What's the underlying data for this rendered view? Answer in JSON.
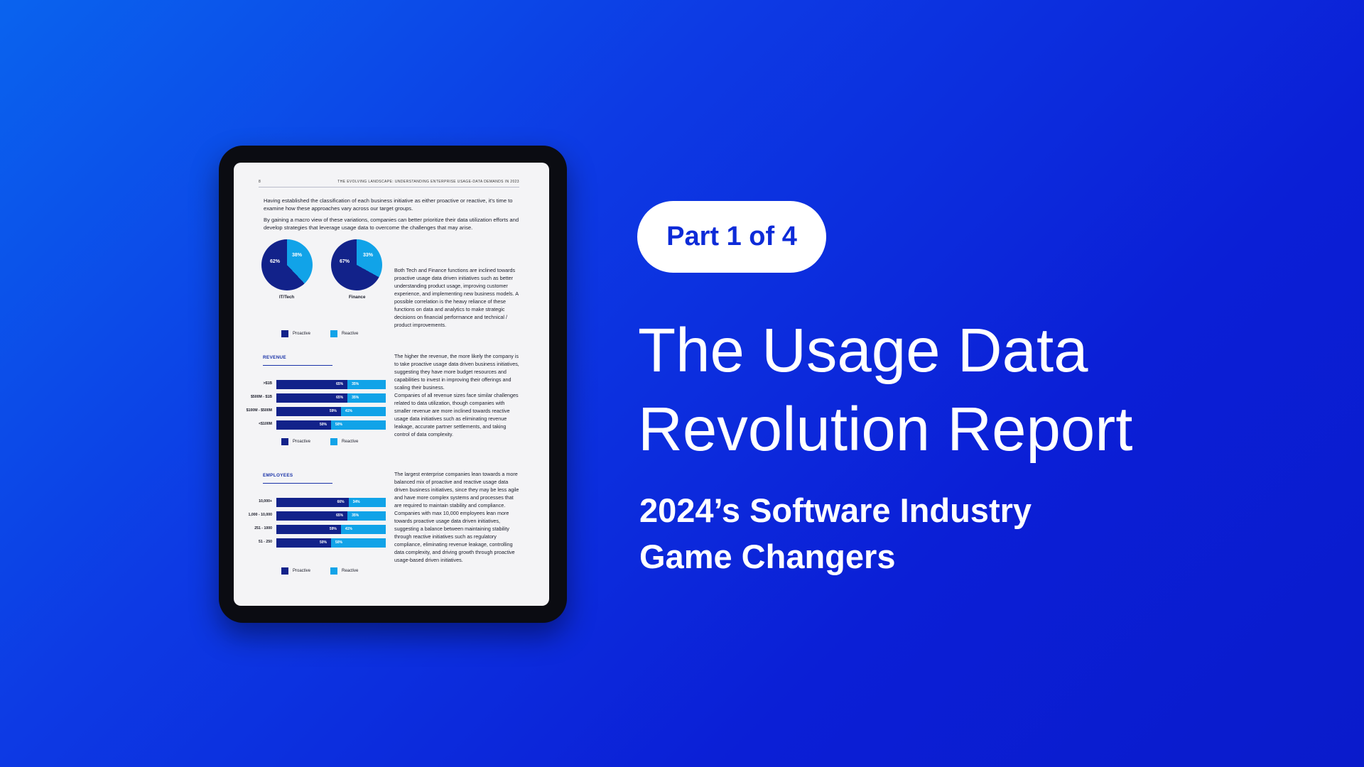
{
  "colors": {
    "background_start": "#0a63ee",
    "background_end": "#0a1bcb",
    "proactive": "#12228a",
    "reactive": "#11a3e8",
    "pill_text": "#0d2bd8"
  },
  "badge": {
    "label": "Part 1 of 4"
  },
  "title": {
    "line1": "The Usage Data",
    "line2": "Revolution Report"
  },
  "subtitle": {
    "line1": "2024’s Software Industry",
    "line2": "Game Changers"
  },
  "report_page": {
    "page_number": "8",
    "running_title": "THE EVOLVING LANDSCAPE: UNDERSTANDING ENTERPRISE USAGE-DATA DEMANDS IN 2023",
    "intro_1": "Having established the classification of each business initiative as either proactive or reactive, it's time to examine how these approaches vary across our target groups.",
    "intro_2": "By gaining a macro view of these variations, companies can better prioritize their data utilization efforts and develop strategies that leverage usage data to overcome the challenges that may arise.",
    "pies": [
      {
        "caption": "IT/Tech",
        "proactive": 62,
        "reactive": 38,
        "proactive_label": "62%",
        "reactive_label": "38%"
      },
      {
        "caption": "Finance",
        "proactive": 67,
        "reactive": 33,
        "proactive_label": "67%",
        "reactive_label": "33%"
      }
    ],
    "legend": {
      "proactive": "Proactive",
      "reactive": "Reactive"
    },
    "para_pies": "Both Tech and Finance functions are inclined towards proactive usage data driven initiatives such as better understanding product usage, improving customer experience, and implementing new business models. A possible correlation is the heavy reliance of these functions on data and analytics to make strategic decisions on financial performance and technical / product improvements.",
    "revenue": {
      "heading": "REVENUE",
      "rows": [
        {
          "label": ">$1B",
          "proactive": 65,
          "reactive": 35,
          "p_label": "65%",
          "r_label": "35%"
        },
        {
          "label": "$500M - $1B",
          "proactive": 65,
          "reactive": 35,
          "p_label": "65%",
          "r_label": "35%"
        },
        {
          "label": "$100M - $500M",
          "proactive": 59,
          "reactive": 41,
          "p_label": "59%",
          "r_label": "41%"
        },
        {
          "label": "<$100M",
          "proactive": 50,
          "reactive": 50,
          "p_label": "50%",
          "r_label": "50%"
        }
      ],
      "para": "The higher the revenue, the more likely the company is to take proactive usage data driven business initiatives, suggesting they have more budget resources and capabilities to invest in improving their offerings and scaling their business.\nCompanies of all revenue sizes face similar challenges related to data utilization, though companies with smaller revenue are more inclined towards reactive usage data initiatives such as eliminating revenue leakage, accurate partner settlements, and taking control of data complexity."
    },
    "employees": {
      "heading": "EMPLOYEES",
      "rows": [
        {
          "label": "10,000+",
          "proactive": 66,
          "reactive": 34,
          "p_label": "66%",
          "r_label": "34%"
        },
        {
          "label": "1,000 - 10,000",
          "proactive": 65,
          "reactive": 35,
          "p_label": "65%",
          "r_label": "35%"
        },
        {
          "label": "251 - 1000",
          "proactive": 59,
          "reactive": 41,
          "p_label": "59%",
          "r_label": "41%"
        },
        {
          "label": "51 - 250",
          "proactive": 50,
          "reactive": 50,
          "p_label": "50%",
          "r_label": "50%"
        }
      ],
      "para": "The largest enterprise companies lean towards a more balanced mix of proactive and reactive usage data driven business initiatives, since they may be less agile and have more complex systems and processes that are required to maintain stability and compliance.\nCompanies with max 10,000 employees lean more towards proactive usage data driven initiatives, suggesting a balance between maintaining stability through reactive initiatives such as regulatory compliance, eliminating revenue leakage, controlling data complexity, and driving growth through proactive usage-based driven initiatives."
    }
  }
}
